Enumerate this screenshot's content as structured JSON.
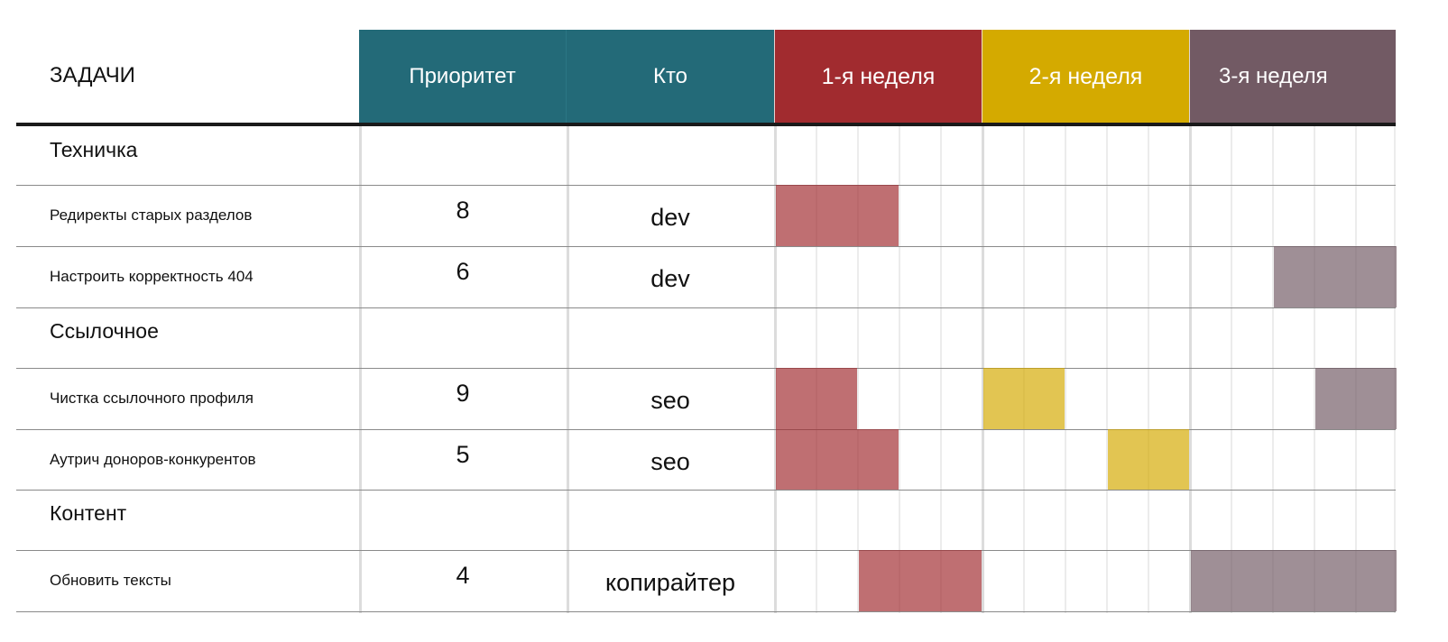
{
  "header": {
    "tasks": "ЗАДАЧИ",
    "priority": "Приоритет",
    "who": "Кто",
    "weeks": [
      {
        "label": "1-я неделя",
        "color": "#a12b2f"
      },
      {
        "label": "2-я неделя",
        "color": "#d4aa00"
      },
      {
        "label": "3-я неделя",
        "color": "#725a64"
      }
    ],
    "teal": "#236a78"
  },
  "days_per_week": 5,
  "rows": [
    {
      "type": "group",
      "name": "Техничка"
    },
    {
      "type": "task",
      "name": "Редиректы старых разделов",
      "priority": "8",
      "who": "dev",
      "bars": [
        {
          "week": 1,
          "from_day": 1,
          "to_day": 3
        }
      ]
    },
    {
      "type": "task",
      "name": "Настроить корректность 404",
      "priority": "6",
      "who": "dev",
      "bars": [
        {
          "week": 3,
          "from_day": 3,
          "to_day": 5
        }
      ]
    },
    {
      "type": "group",
      "name": "Ссылочное"
    },
    {
      "type": "task",
      "name": "Чистка ссылочного профиля",
      "priority": "9",
      "who": "seo",
      "bars": [
        {
          "week": 1,
          "from_day": 1,
          "to_day": 2
        },
        {
          "week": 2,
          "from_day": 1,
          "to_day": 2
        },
        {
          "week": 3,
          "from_day": 4,
          "to_day": 5
        }
      ]
    },
    {
      "type": "task",
      "name": "Аутрич доноров-конкурентов",
      "priority": "5",
      "who": "seo",
      "bars": [
        {
          "week": 1,
          "from_day": 1,
          "to_day": 3
        },
        {
          "week": 2,
          "from_day": 4,
          "to_day": 5
        }
      ]
    },
    {
      "type": "group",
      "name": "Контент"
    },
    {
      "type": "task",
      "name": "Обновить тексты",
      "priority": "4",
      "who": "копирайтер",
      "bars": [
        {
          "week": 1,
          "from_day": 3,
          "to_day": 5
        },
        {
          "week": 3,
          "from_day": 1,
          "to_day": 5
        }
      ]
    }
  ]
}
